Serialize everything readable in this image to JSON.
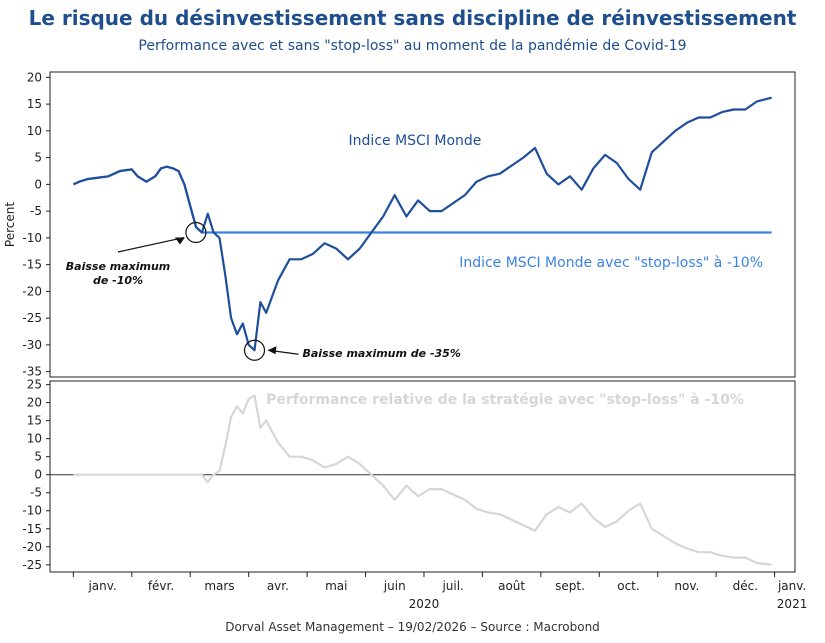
{
  "title": "Le risque du désinvestissement sans discipline de réinvestissement",
  "subtitle": "Performance avec et sans \"stop-loss\" au moment de la pandémie de Covid-19",
  "footer": "Dorval Asset Management – 19/02/2026 –  Source : Macrobond",
  "colors": {
    "main": "#1f4e9c",
    "main_early": "#4a90e2",
    "stoploss": "#3b82e0",
    "relative": "#d6d6d6",
    "title": "#1f4e8c"
  },
  "chart_data": [
    {
      "type": "line",
      "panel": "top",
      "ylabel": "Percent",
      "ylim": [
        -36,
        21
      ],
      "yticks": [
        20,
        15,
        10,
        5,
        0,
        -5,
        -10,
        -15,
        -20,
        -25,
        -30,
        -35
      ],
      "series": [
        {
          "name": "Indice MSCI Monde",
          "x": [
            0,
            0.1,
            0.25,
            0.4,
            0.6,
            0.8,
            1.0,
            1.1,
            1.25,
            1.4,
            1.5,
            1.6,
            1.7,
            1.8,
            1.9,
            2.0,
            2.1,
            2.2,
            2.3,
            2.4,
            2.5,
            2.6,
            2.7,
            2.8,
            2.9,
            3.0,
            3.1,
            3.2,
            3.3,
            3.5,
            3.7,
            3.9,
            4.1,
            4.3,
            4.5,
            4.7,
            4.9,
            5.1,
            5.3,
            5.5,
            5.7,
            5.9,
            6.1,
            6.3,
            6.5,
            6.7,
            6.9,
            7.1,
            7.3,
            7.5,
            7.7,
            7.9,
            8.1,
            8.3,
            8.5,
            8.7,
            8.9,
            9.1,
            9.3,
            9.5,
            9.7,
            9.9,
            10.1,
            10.3,
            10.5,
            10.7,
            10.9,
            11.1,
            11.3,
            11.5,
            11.7,
            11.95
          ],
          "values": [
            0.0,
            0.5,
            1.0,
            1.2,
            1.5,
            2.5,
            2.8,
            1.5,
            0.5,
            1.5,
            3.0,
            3.3,
            3.0,
            2.5,
            0.0,
            -4.0,
            -8.0,
            -9.0,
            -5.5,
            -9.0,
            -10.0,
            -17.0,
            -25.0,
            -28.0,
            -26.0,
            -30.0,
            -31.0,
            -22.0,
            -24.0,
            -18.0,
            -14.0,
            -14.0,
            -13.0,
            -11.0,
            -12.0,
            -14.0,
            -12.0,
            -9.0,
            -6.0,
            -2.0,
            -6.0,
            -3.0,
            -5.0,
            -5.0,
            -3.5,
            -2.0,
            0.5,
            1.5,
            2.0,
            3.5,
            5.0,
            6.8,
            2.0,
            0.0,
            1.5,
            -1.0,
            3.0,
            5.5,
            4.0,
            1.0,
            -1.0,
            6.0,
            8.0,
            10.0,
            11.5,
            12.5,
            12.5,
            13.5,
            14.0,
            14.0,
            15.5,
            16.2
          ]
        },
        {
          "name": "Indice MSCI Monde avec \"stop-loss\" à -10%",
          "x": [
            0,
            0.1,
            0.25,
            0.4,
            0.6,
            0.8,
            1.0,
            1.1,
            1.25,
            1.4,
            1.5,
            1.6,
            1.7,
            1.8,
            1.9,
            2.0,
            2.1,
            2.2,
            11.95
          ],
          "values": [
            0.0,
            0.5,
            1.0,
            1.2,
            1.5,
            2.5,
            2.8,
            1.5,
            0.5,
            1.5,
            3.0,
            3.3,
            3.0,
            2.5,
            0.0,
            -4.0,
            -8.0,
            -9.0,
            -9.0
          ]
        }
      ],
      "annotations": [
        {
          "text": "Baisse maximum de -10%",
          "line1": "Baisse maximum",
          "line2": "de -10%",
          "x": 2.2,
          "y": -9.0
        },
        {
          "text": "Baisse maximum de -35%",
          "x": 3.1,
          "y": -31.0
        }
      ]
    },
    {
      "type": "line",
      "panel": "bottom",
      "ylim": [
        -27,
        26
      ],
      "yticks": [
        25,
        20,
        15,
        10,
        5,
        0,
        -5,
        -10,
        -15,
        -20,
        -25
      ],
      "series": [
        {
          "name": "Performance relative de la stratégie avec \"stop-loss\" à -10%",
          "x": [
            0,
            2.2,
            2.3,
            2.4,
            2.5,
            2.6,
            2.7,
            2.8,
            2.9,
            3.0,
            3.1,
            3.2,
            3.3,
            3.5,
            3.7,
            3.9,
            4.1,
            4.3,
            4.5,
            4.7,
            4.9,
            5.1,
            5.3,
            5.5,
            5.7,
            5.9,
            6.1,
            6.3,
            6.5,
            6.7,
            6.9,
            7.1,
            7.3,
            7.5,
            7.7,
            7.9,
            8.1,
            8.3,
            8.5,
            8.7,
            8.9,
            9.1,
            9.3,
            9.5,
            9.7,
            9.9,
            10.1,
            10.3,
            10.5,
            10.7,
            10.9,
            11.1,
            11.3,
            11.5,
            11.7,
            11.95
          ],
          "values": [
            0,
            0,
            -2,
            0,
            1,
            8,
            16,
            19,
            17,
            21,
            22,
            13,
            15,
            9,
            5,
            5,
            4,
            2,
            3,
            5,
            3,
            0,
            -3,
            -7,
            -3,
            -6,
            -4,
            -4,
            -5.5,
            -7,
            -9.5,
            -10.5,
            -11,
            -12.5,
            -14,
            -15.5,
            -11,
            -9,
            -10.5,
            -8,
            -12,
            -14.5,
            -13,
            -10,
            -8,
            -15,
            -17,
            -19,
            -20.5,
            -21.5,
            -21.5,
            -22.5,
            -23,
            -23,
            -24.5,
            -25
          ]
        }
      ]
    },
    {
      "type": "axis",
      "xticks": [
        "janv.",
        "févr.",
        "mars",
        "avr.",
        "mai",
        "juin",
        "juil.",
        "août",
        "sept.",
        "oct.",
        "nov.",
        "déc.",
        "janv."
      ],
      "year_labels": [
        "2020",
        "2021"
      ],
      "xlim": [
        -0.4,
        12.35
      ]
    }
  ]
}
